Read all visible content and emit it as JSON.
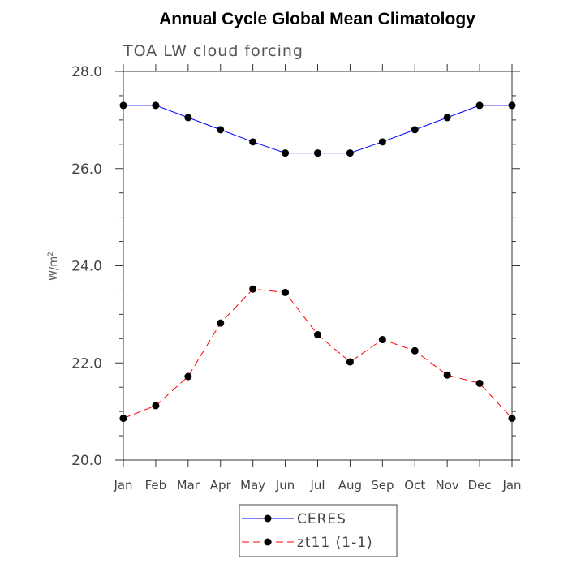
{
  "chart_data": {
    "type": "line",
    "title": "Annual Cycle Global Mean Climatology",
    "subtitle": "TOA LW cloud forcing",
    "xlabel": "",
    "ylabel": "W/m",
    "ylabel_sup": "2",
    "categories": [
      "Jan",
      "Feb",
      "Mar",
      "Apr",
      "May",
      "Jun",
      "Jul",
      "Aug",
      "Sep",
      "Oct",
      "Nov",
      "Dec",
      "Jan"
    ],
    "ylim": [
      20.0,
      28.0
    ],
    "yticks": [
      20.0,
      22.0,
      24.0,
      26.0,
      28.0
    ],
    "ytick_labels": [
      "20.0",
      "22.0",
      "24.0",
      "26.0",
      "28.0"
    ],
    "legend_position": "bottom",
    "series": [
      {
        "name": "CERES",
        "color": "#0000ff",
        "style": "solid",
        "values": [
          27.3,
          27.3,
          27.05,
          26.8,
          26.55,
          26.32,
          26.32,
          26.32,
          26.55,
          26.8,
          27.05,
          27.3,
          27.3
        ]
      },
      {
        "name": "zt11 (1-1)",
        "color": "#ff0000",
        "style": "dashed",
        "values": [
          20.86,
          21.12,
          21.72,
          22.82,
          23.52,
          23.45,
          22.58,
          22.02,
          22.48,
          22.25,
          21.75,
          21.58,
          20.86
        ]
      }
    ]
  }
}
